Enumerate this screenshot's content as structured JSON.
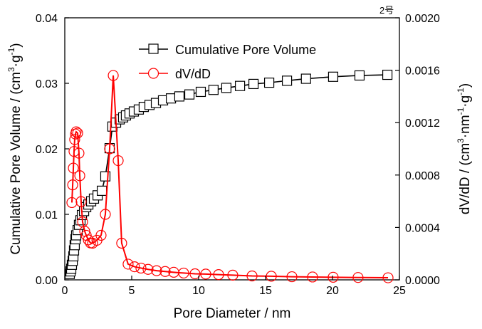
{
  "chart_data": {
    "type": "line",
    "corner_note": "2号",
    "xlabel": "Pore Diameter / nm",
    "ylabel_left": {
      "main": "Cumulative Pore Volume / (cm",
      "sup1": "3",
      "mid": "·g",
      "sup2": "-1",
      "end": ")"
    },
    "ylabel_right": {
      "main": "dV/dD / (cm",
      "sup1": "3",
      "mid": "·nm",
      "sup2": "-1",
      "mid2": "·g",
      "sup3": "-1",
      "end": ")"
    },
    "xlim": [
      0,
      25
    ],
    "ylim_left": [
      0,
      0.04
    ],
    "ylim_right": [
      0,
      0.002
    ],
    "x_ticks": [
      "0",
      "5",
      "10",
      "15",
      "20",
      "25"
    ],
    "x_tick_values": [
      0,
      5,
      10,
      15,
      20,
      25
    ],
    "y_left_ticks": [
      "0.00",
      "0.01",
      "0.02",
      "0.03",
      "0.04"
    ],
    "y_left_tick_values": [
      0,
      0.01,
      0.02,
      0.03,
      0.04
    ],
    "y_right_ticks": [
      "0.0000",
      "0.0004",
      "0.0008",
      "0.0012",
      "0.0016",
      "0.0020"
    ],
    "y_right_tick_values": [
      0,
      0.0004,
      0.0008,
      0.0012,
      0.0016,
      0.002
    ],
    "legend": {
      "position": "top-center",
      "entries": [
        "Cumulative Pore Volume",
        "dV/dD"
      ]
    },
    "series": [
      {
        "name": "Cumulative Pore Volume",
        "axis": "left",
        "color": "#000000",
        "marker": "square",
        "x": [
          0.37,
          0.43,
          0.48,
          0.53,
          0.59,
          0.64,
          0.69,
          0.74,
          0.8,
          0.85,
          0.96,
          1.06,
          1.17,
          1.28,
          1.44,
          1.6,
          1.76,
          1.97,
          2.18,
          2.45,
          2.77,
          3.03,
          3.35,
          3.56,
          3.83,
          4.1,
          4.36,
          4.57,
          4.84,
          5.16,
          5.53,
          5.9,
          6.33,
          6.81,
          7.34,
          7.93,
          8.56,
          9.31,
          10.16,
          11.11,
          12.07,
          13.09,
          14.1,
          15.27,
          16.6,
          18.02,
          20.05,
          22.02,
          24.1
        ],
        "values": [
          0.0009,
          0.0013,
          0.0017,
          0.0023,
          0.0029,
          0.0036,
          0.0045,
          0.0053,
          0.0062,
          0.0068,
          0.0076,
          0.0084,
          0.0091,
          0.0099,
          0.0105,
          0.0111,
          0.0115,
          0.012,
          0.0124,
          0.0129,
          0.0136,
          0.0158,
          0.0201,
          0.0234,
          0.024,
          0.0245,
          0.0248,
          0.0251,
          0.0254,
          0.0257,
          0.026,
          0.0264,
          0.0267,
          0.027,
          0.0274,
          0.0277,
          0.028,
          0.0283,
          0.0287,
          0.029,
          0.0293,
          0.0296,
          0.0299,
          0.0301,
          0.0304,
          0.0307,
          0.031,
          0.0312,
          0.0313
        ]
      },
      {
        "name": "dV/dD",
        "axis": "right",
        "color": "#ff0000",
        "marker": "circle",
        "x": [
          0.53,
          0.59,
          0.64,
          0.69,
          0.74,
          0.8,
          0.85,
          0.96,
          1.06,
          1.12,
          1.22,
          1.33,
          1.49,
          1.6,
          1.76,
          1.92,
          2.08,
          2.4,
          2.71,
          3.03,
          3.35,
          3.62,
          3.99,
          4.25,
          4.73,
          5.21,
          5.69,
          6.22,
          6.86,
          7.5,
          8.14,
          8.88,
          9.73,
          10.53,
          11.49,
          12.55,
          13.99,
          15.43,
          16.97,
          18.51,
          20.05,
          21.91,
          24.15
        ],
        "values": [
          0.00059,
          0.000725,
          0.000853,
          0.00098,
          0.001071,
          0.001113,
          0.00113,
          0.00112,
          0.000967,
          0.000795,
          0.000597,
          0.000442,
          0.000371,
          0.00034,
          0.000305,
          0.000282,
          0.00028,
          0.000302,
          0.00034,
          0.0005,
          0.001,
          0.00156,
          0.00091,
          0.00028,
          0.00012,
          0.0001,
          9e-05,
          8e-05,
          7e-05,
          6.4e-05,
          5.8e-05,
          5.2e-05,
          4.6e-05,
          4.4e-05,
          4e-05,
          3.6e-05,
          3e-05,
          2.8e-05,
          2.4e-05,
          2.2e-05,
          2e-05,
          1.8e-05,
          1.6e-05
        ]
      }
    ]
  }
}
